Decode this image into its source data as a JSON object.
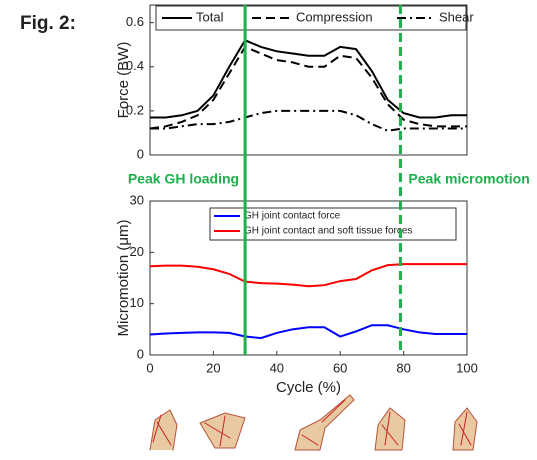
{
  "figure_label": "Fig. 2:",
  "markers": [
    {
      "label": "Peak GH loading",
      "x": 30,
      "style": "solid",
      "color": "#1db04b"
    },
    {
      "label": "Peak micromotion",
      "x": 79,
      "style": "dashed",
      "color": "#1db04b"
    }
  ],
  "chart_data": [
    {
      "type": "line",
      "ylabel": "Force (BW)",
      "x": [
        0,
        5,
        10,
        15,
        20,
        25,
        30,
        35,
        40,
        45,
        50,
        55,
        60,
        65,
        70,
        75,
        80,
        85,
        90,
        95,
        100
      ],
      "xlim": [
        0,
        100
      ],
      "ylim": [
        0,
        0.68
      ],
      "yticks": [
        0,
        0.2,
        0.4,
        0.6
      ],
      "legend": "upper center",
      "series": [
        {
          "name": "Total",
          "color": "#000000",
          "style": "solid",
          "values": [
            0.17,
            0.17,
            0.18,
            0.2,
            0.27,
            0.4,
            0.52,
            0.49,
            0.47,
            0.46,
            0.45,
            0.45,
            0.49,
            0.48,
            0.38,
            0.25,
            0.19,
            0.17,
            0.17,
            0.18,
            0.18
          ]
        },
        {
          "name": "Compression",
          "color": "#000000",
          "style": "dashed",
          "values": [
            0.12,
            0.13,
            0.15,
            0.18,
            0.25,
            0.37,
            0.49,
            0.46,
            0.43,
            0.42,
            0.4,
            0.4,
            0.45,
            0.44,
            0.35,
            0.23,
            0.16,
            0.14,
            0.13,
            0.13,
            0.13
          ]
        },
        {
          "name": "Shear",
          "color": "#000000",
          "style": "dashdot",
          "values": [
            0.12,
            0.12,
            0.13,
            0.14,
            0.14,
            0.15,
            0.17,
            0.19,
            0.2,
            0.2,
            0.2,
            0.2,
            0.2,
            0.18,
            0.14,
            0.11,
            0.12,
            0.12,
            0.12,
            0.12,
            0.12
          ]
        }
      ]
    },
    {
      "type": "line",
      "ylabel": "Micromotion (μm)",
      "xlabel": "Cycle (%)",
      "x": [
        0,
        5,
        10,
        15,
        20,
        25,
        30,
        35,
        40,
        45,
        50,
        55,
        60,
        65,
        70,
        75,
        80,
        85,
        90,
        95,
        100
      ],
      "xlim": [
        0,
        100
      ],
      "xticks": [
        0,
        20,
        40,
        60,
        80,
        100
      ],
      "ylim": [
        0,
        30
      ],
      "yticks": [
        0,
        10,
        20,
        30
      ],
      "legend": "upper left",
      "series": [
        {
          "name": "GH joint contact force",
          "color": "#0000ff",
          "style": "solid",
          "values": [
            4,
            4.2,
            4.3,
            4.4,
            4.4,
            4.3,
            3.6,
            3.3,
            4.3,
            5,
            5.4,
            5.4,
            3.6,
            4.6,
            5.8,
            5.8,
            5,
            4.4,
            4.1,
            4.1,
            4.1
          ]
        },
        {
          "name": "GH joint contact and soft tissue forces",
          "color": "#ff0000",
          "style": "solid",
          "values": [
            17.3,
            17.4,
            17.4,
            17.2,
            16.7,
            15.8,
            14.3,
            14,
            13.9,
            13.7,
            13.4,
            13.6,
            14.4,
            14.8,
            16.5,
            17.5,
            17.7,
            17.7,
            17.7,
            17.7,
            17.7
          ]
        }
      ]
    }
  ]
}
